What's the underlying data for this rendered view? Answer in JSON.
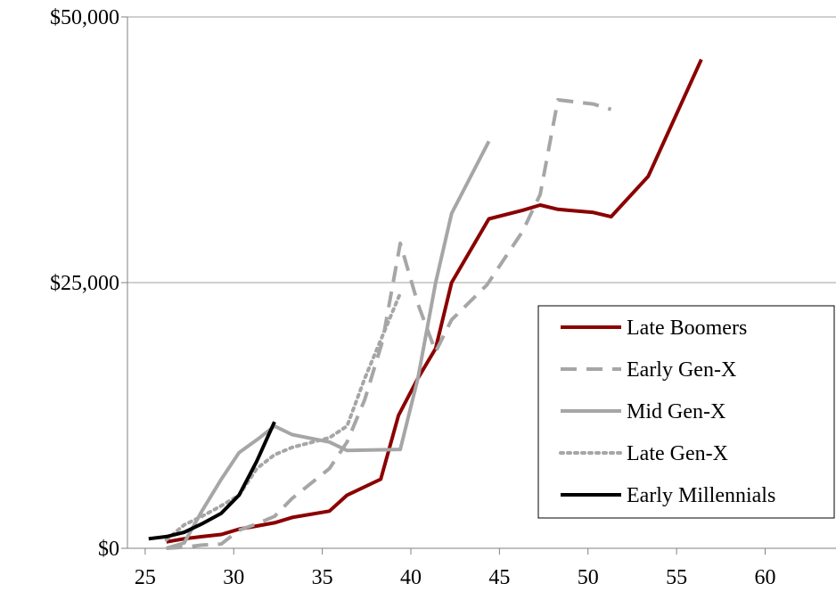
{
  "chart_data": {
    "type": "line",
    "title": "",
    "xlabel": "",
    "ylabel": "",
    "xlim": [
      24,
      64
    ],
    "ylim": [
      0,
      50000
    ],
    "x_ticks": [
      25,
      30,
      35,
      40,
      45,
      50,
      55,
      60
    ],
    "x_tick_labels": [
      "25",
      "30",
      "35",
      "40",
      "45",
      "50",
      "55",
      "60"
    ],
    "y_ticks": [
      0,
      25000,
      50000
    ],
    "y_tick_labels": [
      "$0",
      "$25,000",
      "$50,000"
    ],
    "grid": "horizontal",
    "legend_position": "right",
    "series": [
      {
        "name": "Late Boomers",
        "color": "#8b0000",
        "style": "solid",
        "points": [
          [
            26.2,
            600
          ],
          [
            27.2,
            900
          ],
          [
            28.2,
            1100
          ],
          [
            29.3,
            1300
          ],
          [
            30.3,
            1800
          ],
          [
            31.3,
            2100
          ],
          [
            32.3,
            2400
          ],
          [
            33.3,
            2900
          ],
          [
            35.4,
            3500
          ],
          [
            36.4,
            5000
          ],
          [
            38.3,
            6500
          ],
          [
            39.3,
            12500
          ],
          [
            40.4,
            16000
          ],
          [
            41.4,
            18800
          ],
          [
            42.3,
            25000
          ],
          [
            44.4,
            31000
          ],
          [
            46.3,
            31800
          ],
          [
            47.3,
            32300
          ],
          [
            48.3,
            31900
          ],
          [
            50.3,
            31600
          ],
          [
            51.3,
            31200
          ],
          [
            53.4,
            35000
          ],
          [
            56.4,
            46000
          ]
        ]
      },
      {
        "name": "Early Gen-X",
        "color": "#a6a6a6",
        "style": "dashed",
        "points": [
          [
            26.2,
            0
          ],
          [
            27.2,
            100
          ],
          [
            28.2,
            300
          ],
          [
            29.3,
            400
          ],
          [
            30.3,
            1700
          ],
          [
            31.3,
            2300
          ],
          [
            32.3,
            3000
          ],
          [
            33.3,
            4700
          ],
          [
            35.4,
            7500
          ],
          [
            36.4,
            10000
          ],
          [
            37.4,
            14000
          ],
          [
            38.4,
            19500
          ],
          [
            39.4,
            28700
          ],
          [
            40.4,
            23000
          ],
          [
            41.4,
            18500
          ],
          [
            42.3,
            21500
          ],
          [
            44.3,
            24800
          ],
          [
            46.3,
            29800
          ],
          [
            47.3,
            33300
          ],
          [
            48.3,
            42200
          ],
          [
            50.3,
            41800
          ],
          [
            51.3,
            41300
          ]
        ]
      },
      {
        "name": "Mid Gen-X",
        "color": "#a6a6a6",
        "style": "solid",
        "points": [
          [
            26.2,
            0
          ],
          [
            27.2,
            500
          ],
          [
            28.2,
            3500
          ],
          [
            29.3,
            6500
          ],
          [
            30.3,
            9000
          ],
          [
            31.3,
            10200
          ],
          [
            32.3,
            11500
          ],
          [
            33.3,
            10700
          ],
          [
            35.4,
            10000
          ],
          [
            36.4,
            9200
          ],
          [
            39.4,
            9300
          ],
          [
            40.4,
            16000
          ],
          [
            41.4,
            25000
          ],
          [
            42.3,
            31500
          ],
          [
            44.4,
            38300
          ]
        ]
      },
      {
        "name": "Late Gen-X",
        "color": "#a6a6a6",
        "style": "dotted",
        "points": [
          [
            26.2,
            800
          ],
          [
            27.2,
            2200
          ],
          [
            28.2,
            3000
          ],
          [
            29.3,
            4000
          ],
          [
            30.3,
            5000
          ],
          [
            31.3,
            7500
          ],
          [
            32.3,
            8800
          ],
          [
            33.3,
            9500
          ],
          [
            35.4,
            10400
          ],
          [
            36.4,
            11500
          ],
          [
            37.4,
            16000
          ],
          [
            38.4,
            20000
          ],
          [
            39.4,
            24000
          ]
        ]
      },
      {
        "name": "Early Millennials",
        "color": "#000000",
        "style": "solid",
        "points": [
          [
            25.2,
            900
          ],
          [
            26.2,
            1100
          ],
          [
            27.2,
            1500
          ],
          [
            28.2,
            2300
          ],
          [
            29.3,
            3300
          ],
          [
            30.3,
            5000
          ],
          [
            31.3,
            8200
          ],
          [
            32.3,
            11900
          ]
        ]
      }
    ]
  }
}
